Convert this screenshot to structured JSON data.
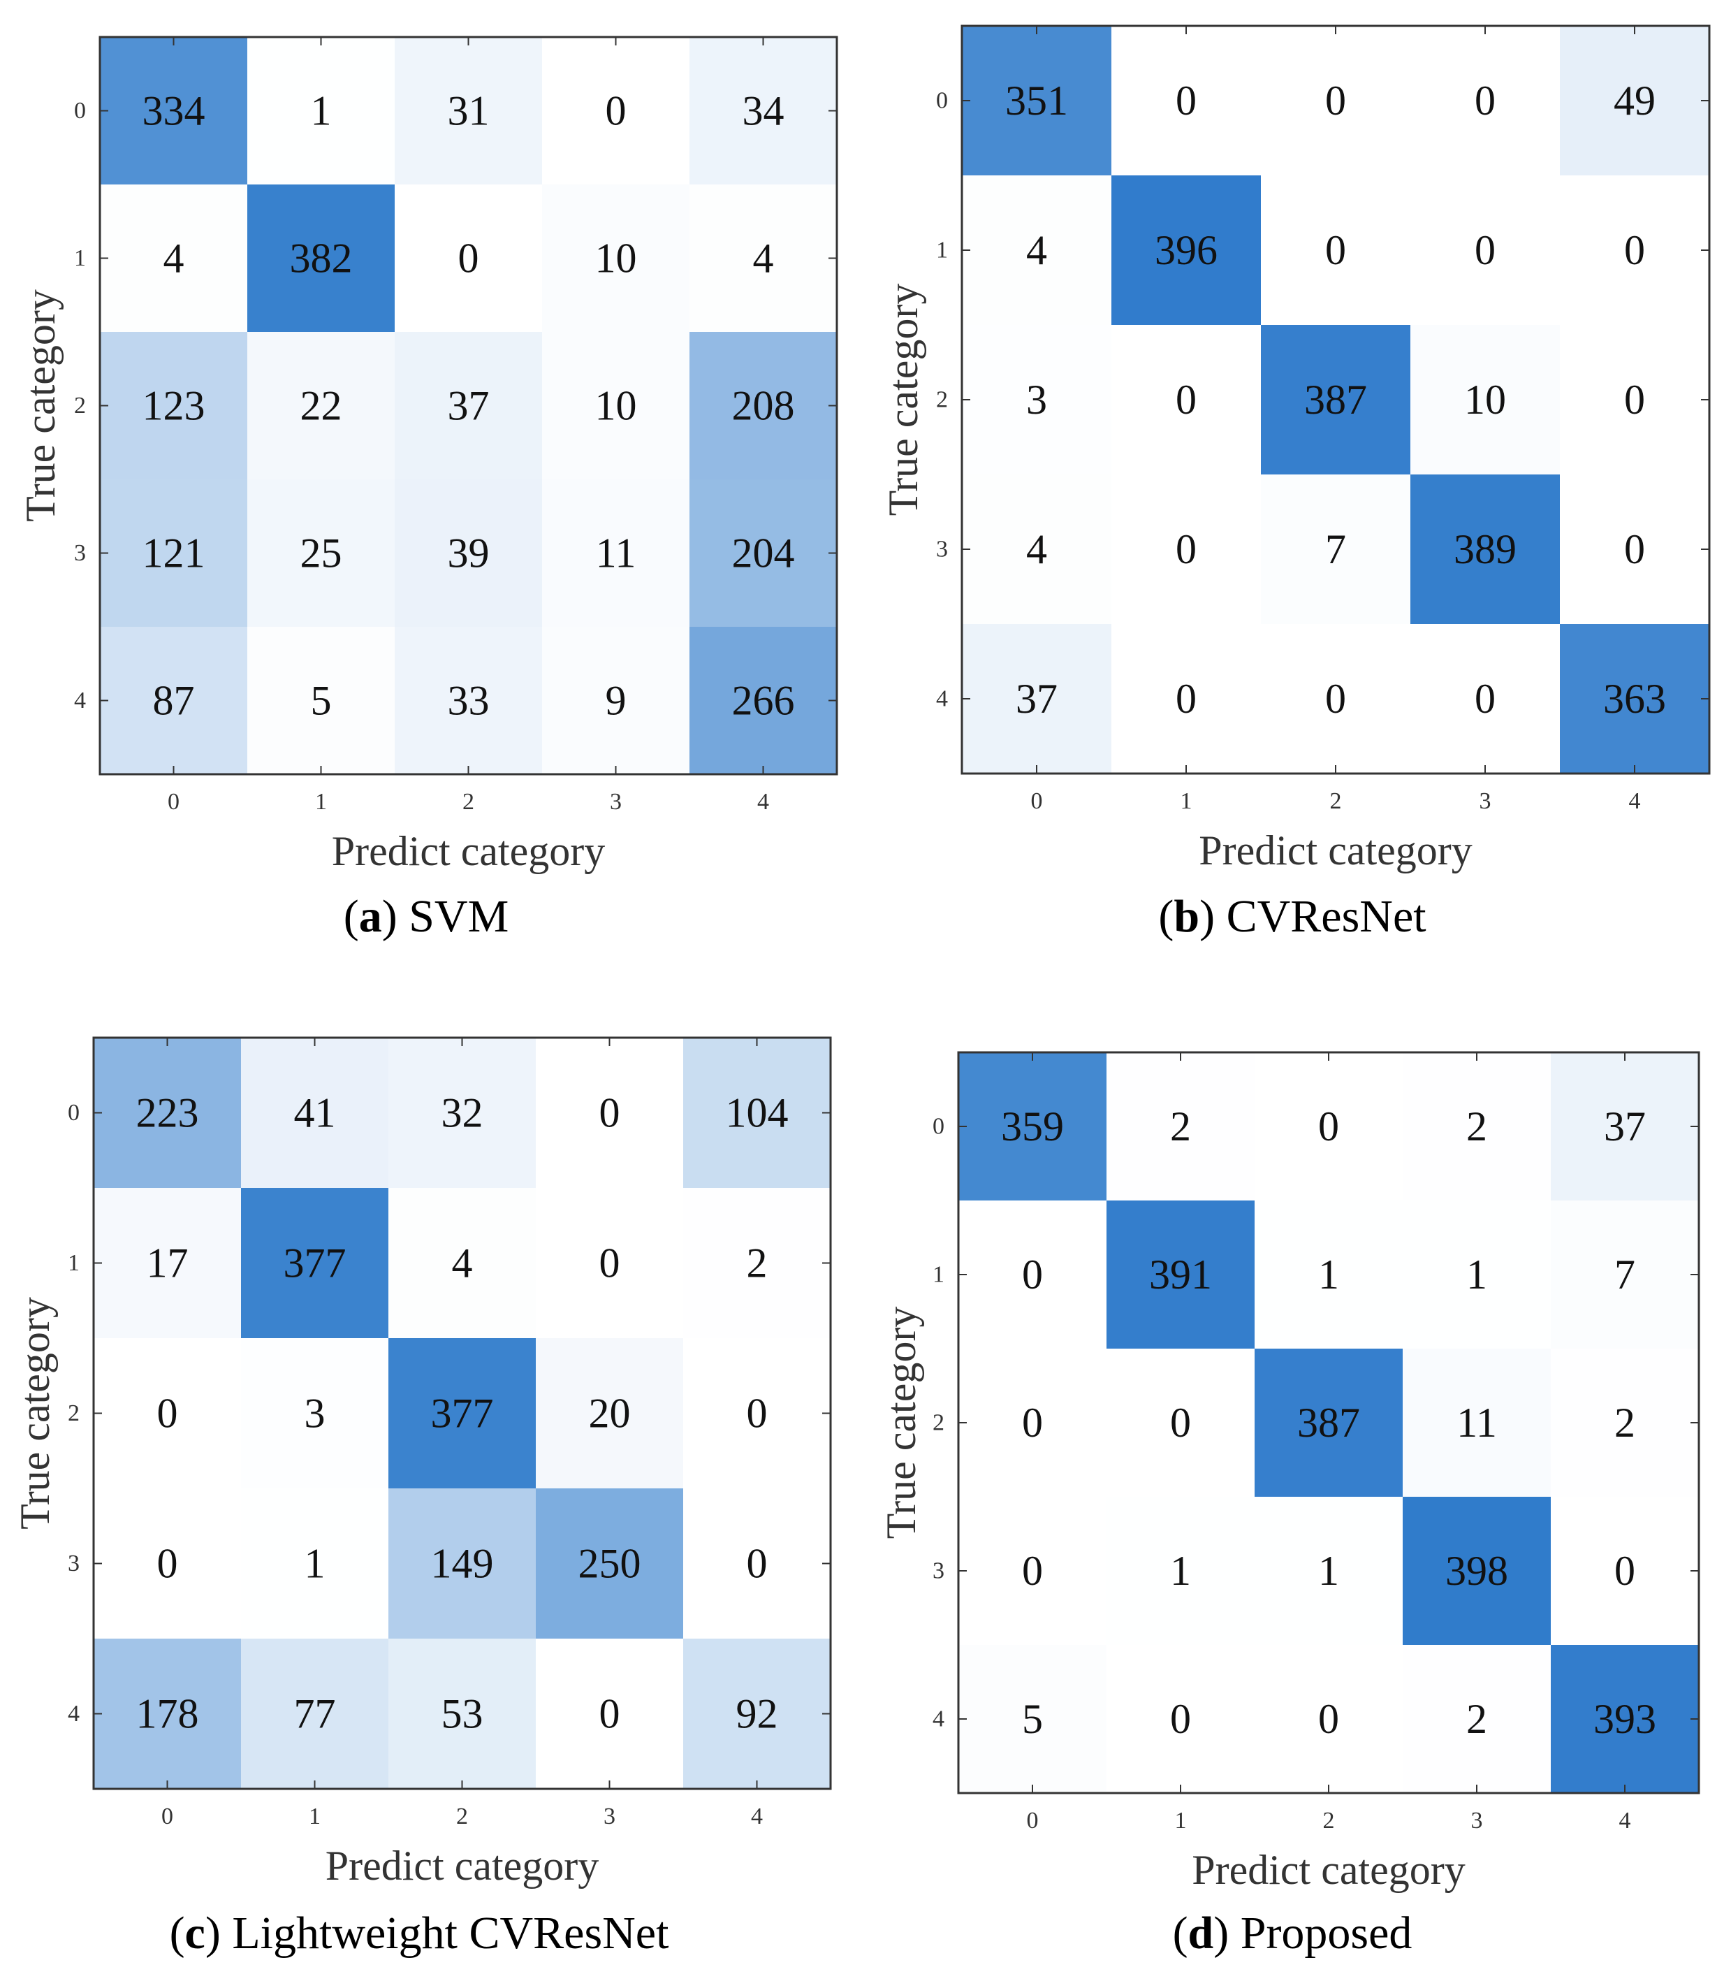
{
  "chart_data": [
    {
      "type": "heatmap",
      "panel": "a",
      "caption_letter": "a",
      "caption_text": "SVM",
      "xlabel": "Predict category",
      "ylabel": "True category",
      "xticks": [
        "0",
        "1",
        "2",
        "3",
        "4"
      ],
      "yticks": [
        "0",
        "1",
        "2",
        "3",
        "4"
      ],
      "matrix": [
        [
          334,
          1,
          31,
          0,
          34
        ],
        [
          4,
          382,
          0,
          10,
          4
        ],
        [
          123,
          22,
          37,
          10,
          208
        ],
        [
          121,
          25,
          39,
          11,
          204
        ],
        [
          87,
          5,
          33,
          9,
          266
        ]
      ]
    },
    {
      "type": "heatmap",
      "panel": "b",
      "caption_letter": "b",
      "caption_text": "CVResNet",
      "xlabel": "Predict category",
      "ylabel": "True category",
      "xticks": [
        "0",
        "1",
        "2",
        "3",
        "4"
      ],
      "yticks": [
        "0",
        "1",
        "2",
        "3",
        "4"
      ],
      "matrix": [
        [
          351,
          0,
          0,
          0,
          49
        ],
        [
          4,
          396,
          0,
          0,
          0
        ],
        [
          3,
          0,
          387,
          10,
          0
        ],
        [
          4,
          0,
          7,
          389,
          0
        ],
        [
          37,
          0,
          0,
          0,
          363
        ]
      ]
    },
    {
      "type": "heatmap",
      "panel": "c",
      "caption_letter": "c",
      "caption_text": "Lightweight CVResNet",
      "xlabel": "Predict category",
      "ylabel": "True category",
      "xticks": [
        "0",
        "1",
        "2",
        "3",
        "4"
      ],
      "yticks": [
        "0",
        "1",
        "2",
        "3",
        "4"
      ],
      "matrix": [
        [
          223,
          41,
          32,
          0,
          104
        ],
        [
          17,
          377,
          4,
          0,
          2
        ],
        [
          0,
          3,
          377,
          20,
          0
        ],
        [
          0,
          1,
          149,
          250,
          0
        ],
        [
          178,
          77,
          53,
          0,
          92
        ]
      ]
    },
    {
      "type": "heatmap",
      "panel": "d",
      "caption_letter": "d",
      "caption_text": "Proposed",
      "xlabel": "Predict category",
      "ylabel": "True category",
      "xticks": [
        "0",
        "1",
        "2",
        "3",
        "4"
      ],
      "yticks": [
        "0",
        "1",
        "2",
        "3",
        "4"
      ],
      "matrix": [
        [
          359,
          2,
          0,
          2,
          37
        ],
        [
          0,
          391,
          1,
          1,
          7
        ],
        [
          0,
          0,
          387,
          11,
          2
        ],
        [
          0,
          1,
          1,
          398,
          0
        ],
        [
          5,
          0,
          0,
          2,
          393
        ]
      ]
    }
  ],
  "colors": {
    "low": "#ffffff",
    "high": "#2f7bcb",
    "frame": "#333333"
  }
}
